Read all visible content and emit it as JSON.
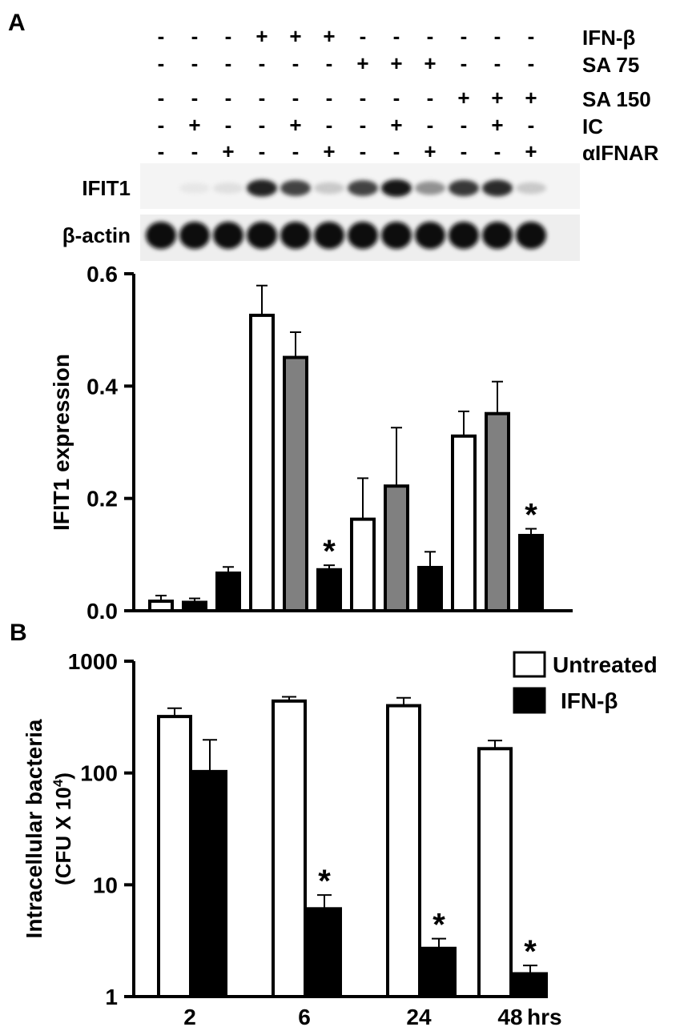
{
  "panels": {
    "a_label": "A",
    "b_label": "B"
  },
  "blot": {
    "treatments": [
      {
        "name": "IFN-β",
        "signs": [
          "-",
          "-",
          "-",
          "+",
          "+",
          "+",
          "-",
          "-",
          "-",
          "-",
          "-",
          "-"
        ]
      },
      {
        "name": "SA 75",
        "signs": [
          "-",
          "-",
          "-",
          "-",
          "-",
          "-",
          "+",
          "+",
          "+",
          "-",
          "-",
          "-"
        ]
      },
      {
        "name": "SA 150",
        "signs": [
          "-",
          "-",
          "-",
          "-",
          "-",
          "-",
          "-",
          "-",
          "-",
          "+",
          "+",
          "+"
        ]
      },
      {
        "name": "IC",
        "signs": [
          "-",
          "+",
          "-",
          "-",
          "+",
          "-",
          "-",
          "+",
          "-",
          "-",
          "+",
          "-"
        ]
      },
      {
        "name": "αIFNAR",
        "signs": [
          "-",
          "-",
          "+",
          "-",
          "-",
          "+",
          "-",
          "-",
          "+",
          "-",
          "-",
          "+"
        ]
      }
    ],
    "bands": [
      {
        "name": "IFIT1",
        "intensity": [
          0.0,
          0.02,
          0.05,
          0.9,
          0.75,
          0.15,
          0.75,
          0.95,
          0.4,
          0.8,
          0.85,
          0.15
        ]
      },
      {
        "name": "β-actin",
        "intensity": [
          1,
          1,
          1,
          1,
          1,
          1,
          1,
          1,
          1,
          1,
          1,
          1
        ]
      }
    ]
  },
  "chart_data": [
    {
      "type": "bar",
      "ylabel": "IFIT1 expression",
      "ylim": [
        0,
        0.6
      ],
      "yticks": [
        "0.0",
        "0.2",
        "0.4",
        "0.6"
      ],
      "grid": false,
      "bars": [
        {
          "value": 0.017,
          "error": 0.01,
          "fill": "#ffffff",
          "sig": ""
        },
        {
          "value": 0.015,
          "error": 0.007,
          "fill": "#000000",
          "sig": ""
        },
        {
          "value": 0.067,
          "error": 0.011,
          "fill": "#000000",
          "sig": ""
        },
        {
          "value": 0.526,
          "error": 0.053,
          "fill": "#ffffff",
          "sig": ""
        },
        {
          "value": 0.451,
          "error": 0.045,
          "fill": "#808080",
          "sig": ""
        },
        {
          "value": 0.073,
          "error": 0.008,
          "fill": "#000000",
          "sig": "*"
        },
        {
          "value": 0.163,
          "error": 0.073,
          "fill": "#ffffff",
          "sig": ""
        },
        {
          "value": 0.222,
          "error": 0.104,
          "fill": "#808080",
          "sig": ""
        },
        {
          "value": 0.077,
          "error": 0.028,
          "fill": "#000000",
          "sig": ""
        },
        {
          "value": 0.311,
          "error": 0.044,
          "fill": "#ffffff",
          "sig": ""
        },
        {
          "value": 0.351,
          "error": 0.057,
          "fill": "#808080",
          "sig": ""
        },
        {
          "value": 0.134,
          "error": 0.012,
          "fill": "#000000",
          "sig": "*"
        }
      ]
    },
    {
      "type": "bar",
      "ylabel_line1": "Intracellular bacteria",
      "ylabel_line2": "(CFU X 10",
      "ylabel_sup": "4",
      "ylabel_end": ")",
      "yscale": "log",
      "ylim": [
        1,
        1000
      ],
      "yticks": [
        "1",
        "10",
        "100",
        "1000"
      ],
      "categories": [
        "2",
        "6",
        "24",
        "48"
      ],
      "x_unit": "hrs",
      "legend_position": "top-right",
      "series": [
        {
          "name": "Untreated",
          "fill": "#ffffff",
          "values": [
            320,
            440,
            400,
            165
          ],
          "errors": [
            60,
            40,
            70,
            30
          ],
          "sig": [
            "",
            "",
            "",
            ""
          ]
        },
        {
          "name": "IFN-β",
          "fill": "#000000",
          "values": [
            103,
            6.1,
            2.7,
            1.6
          ],
          "errors": [
            95,
            2.0,
            0.6,
            0.3
          ],
          "sig": [
            "",
            "*",
            "*",
            "*"
          ]
        }
      ]
    }
  ]
}
